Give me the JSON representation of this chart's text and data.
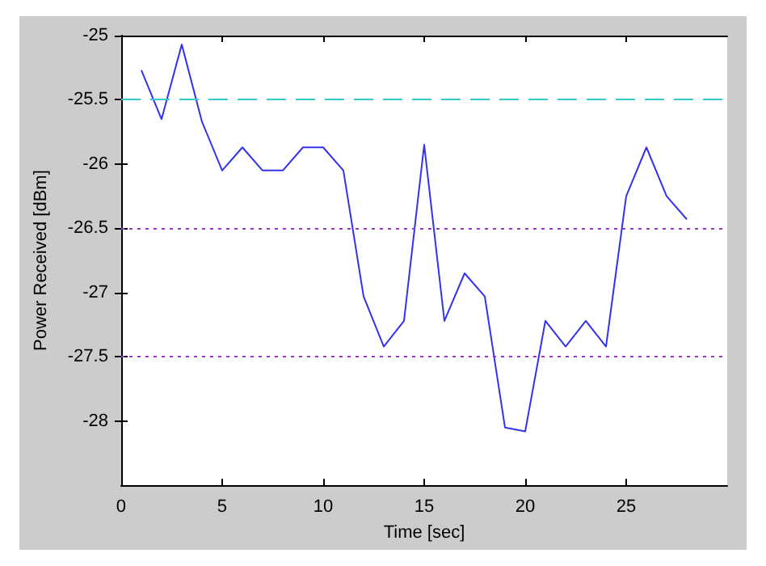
{
  "chart_data": {
    "type": "line",
    "xlabel": "Time [sec]",
    "ylabel": "Power Received [dBm]",
    "x": [
      1,
      2,
      3,
      4,
      5,
      6,
      7,
      8,
      9,
      10,
      11,
      12,
      13,
      14,
      15,
      16,
      17,
      18,
      19,
      20,
      21,
      22,
      23,
      24,
      25,
      26,
      27,
      28
    ],
    "series": [
      {
        "color": "#3333ee",
        "values": [
          -25.27,
          -25.65,
          -25.07,
          -25.67,
          -26.05,
          -25.87,
          -26.05,
          -26.05,
          -25.87,
          -25.87,
          -26.05,
          -27.03,
          -27.42,
          -27.22,
          -25.85,
          -27.22,
          -26.85,
          -27.03,
          -28.05,
          -28.08,
          -27.22,
          -27.42,
          -27.22,
          -27.42,
          -26.25,
          -25.87,
          -26.25,
          -26.43
        ]
      }
    ],
    "xlim": [
      0,
      30
    ],
    "xticks": [
      0,
      5,
      10,
      15,
      20,
      25
    ],
    "ylim": [
      -28.5,
      -25
    ],
    "yticks": [
      -28,
      -27.5,
      -27,
      -26.5,
      -26,
      -25.5,
      -25
    ],
    "ref_lines": [
      {
        "axis": "y",
        "value": -25.5,
        "color": "#33cccc",
        "line_style": "dashed"
      },
      {
        "axis": "y",
        "value": -26.5,
        "color": "#9933cc",
        "line_style": "dotted"
      },
      {
        "axis": "y",
        "value": -27.5,
        "color": "#9933cc",
        "line_style": "dotted"
      }
    ],
    "grid": false,
    "marker": "none",
    "line_style": "solid"
  }
}
